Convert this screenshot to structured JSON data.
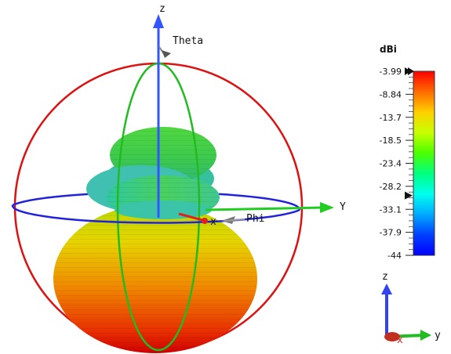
{
  "view3d": {
    "axes": {
      "z_label": "z",
      "y_label": "Y",
      "x_label": "x",
      "theta_label": "Theta",
      "phi_label": "Phi"
    },
    "colors": {
      "theta_circle": "#22bb22",
      "phi_circle": "#2222dd",
      "outer_sphere": "#dd1111",
      "z_axis": "#3355ff",
      "y_axis": "#22cc22",
      "x_axis": "#dd2222"
    }
  },
  "legend": {
    "unit": "dBi",
    "max_marker": "-3.99",
    "ticks": [
      "-3.99",
      "-8.84",
      "-13.7",
      "-18.5",
      "-23.4",
      "-28.2",
      "-33.1",
      "-37.9",
      "-44"
    ],
    "marker_value": "-31",
    "colormap": [
      "#ff0000",
      "#ff6a00",
      "#ffd000",
      "#c8ff00",
      "#4cff00",
      "#00ff80",
      "#00ffee",
      "#00aaff",
      "#0040ff",
      "#0000ff"
    ]
  },
  "triad": {
    "z": "z",
    "y": "y",
    "x": "x"
  }
}
